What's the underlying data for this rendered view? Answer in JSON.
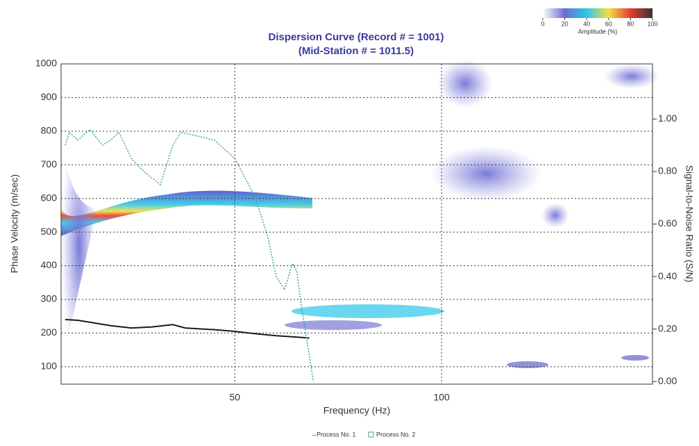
{
  "chart_data": {
    "type": "line",
    "title": "Dispersion Curve (Record # = 1001)",
    "subtitle": "(Mid-Station # = 1011.5)",
    "x_label": "Frequency (Hz)",
    "y_label": "Phase Velocity (m/sec)",
    "y2_label": "Signal-to-Noise Ratio (S/N)",
    "xlim": [
      8,
      151
    ],
    "xticks": [
      50,
      100
    ],
    "ylim": [
      48,
      1000
    ],
    "yticks": [
      100,
      200,
      300,
      400,
      500,
      600,
      700,
      800,
      900,
      1000
    ],
    "y2lim": [
      -0.01,
      1.21
    ],
    "y2ticks": [
      {
        "value": 0,
        "label": "0.00"
      },
      {
        "value": 0.2,
        "label": "0.20"
      },
      {
        "value": 0.4,
        "label": "0.40"
      },
      {
        "value": 0.6,
        "label": "0.60"
      },
      {
        "value": 0.8,
        "label": "0.80"
      },
      {
        "value": 1,
        "label": "1.00"
      }
    ],
    "grid": true,
    "series": [
      {
        "name": "Process No. 1",
        "color": "#1a1a1a",
        "x": [
          9,
          12,
          15,
          20,
          25,
          30,
          35,
          38,
          45,
          50,
          55,
          60,
          65,
          68
        ],
        "values": [
          240,
          238,
          232,
          222,
          215,
          218,
          225,
          215,
          210,
          205,
          198,
          192,
          188,
          185
        ]
      },
      {
        "name": "Process No. 2",
        "color": "#3aa39a",
        "axis": "y2",
        "x": [
          9,
          10,
          12,
          15,
          18,
          20,
          22,
          25,
          28,
          32,
          35,
          37,
          45,
          50,
          55,
          58,
          60,
          62,
          64,
          65,
          66,
          67,
          68,
          69
        ],
        "values": [
          0.9,
          0.95,
          0.92,
          0.96,
          0.9,
          0.92,
          0.95,
          0.85,
          0.8,
          0.75,
          0.9,
          0.95,
          0.92,
          0.85,
          0.7,
          0.55,
          0.4,
          0.35,
          0.45,
          0.42,
          0.3,
          0.2,
          0.1,
          0
        ]
      }
    ],
    "colorbar": {
      "label": "Amplitude (%)",
      "ticks": [
        0,
        20,
        40,
        60,
        80,
        100
      ],
      "colors": [
        "#ffffff",
        "#6b6bd6",
        "#2ec8e8",
        "#f0e040",
        "#e83a30",
        "#333333"
      ]
    }
  }
}
